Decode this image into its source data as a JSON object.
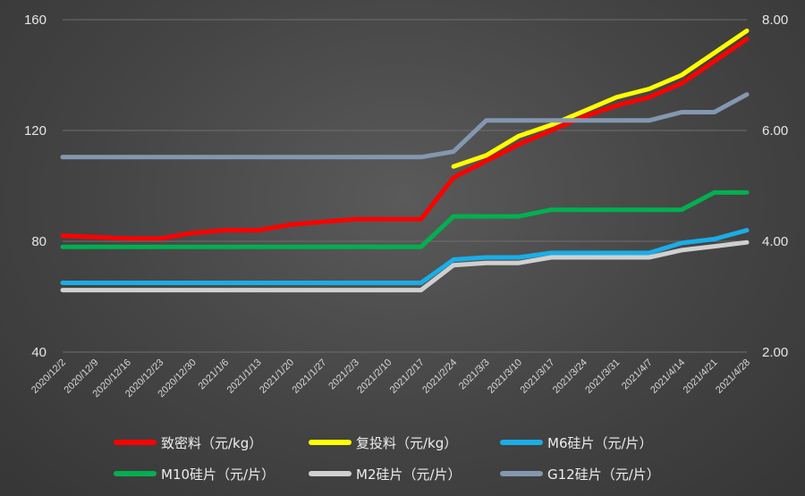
{
  "chart_data": {
    "type": "line",
    "x": [
      "2020/12/2",
      "2020/12/9",
      "2020/12/16",
      "2020/12/23",
      "2020/12/30",
      "2021/1/6",
      "2021/1/13",
      "2021/1/20",
      "2021/1/27",
      "2021/2/3",
      "2021/2/10",
      "2021/2/17",
      "2021/2/24",
      "2021/3/3",
      "2021/3/10",
      "2021/3/17",
      "2021/3/24",
      "2021/3/31",
      "2021/4/7",
      "2021/4/14",
      "2021/4/21",
      "2021/4/28"
    ],
    "y_left_ticks": [
      "40",
      "80",
      "120",
      "160"
    ],
    "y_left_range": [
      40,
      160
    ],
    "y_right_ticks": [
      "2.00",
      "4.00",
      "6.00",
      "8.00"
    ],
    "y_right_range": [
      2,
      8
    ],
    "grid": "horizontal",
    "legend_position": "bottom",
    "series": [
      {
        "name": "致密料（元/kg）",
        "axis": "left",
        "color": "#ff0000",
        "values": [
          82,
          81.5,
          81,
          81,
          83,
          84,
          84,
          86,
          87,
          88,
          88,
          88,
          103,
          109,
          115,
          120,
          125,
          129,
          132,
          137,
          145,
          153
        ]
      },
      {
        "name": "复投料（元/kg）",
        "axis": "left",
        "color": "#ffff00",
        "values": [
          null,
          null,
          null,
          null,
          null,
          null,
          null,
          null,
          null,
          null,
          null,
          null,
          107,
          111,
          118,
          122,
          127,
          132,
          135,
          140,
          148,
          156
        ]
      },
      {
        "name": "M6硅片（元/片）",
        "axis": "right",
        "color": "#19aee8",
        "values": [
          3.25,
          3.25,
          3.25,
          3.25,
          3.25,
          3.25,
          3.25,
          3.25,
          3.25,
          3.25,
          3.25,
          3.25,
          3.67,
          3.71,
          3.71,
          3.79,
          3.79,
          3.79,
          3.79,
          3.97,
          4.04,
          4.2
        ]
      },
      {
        "name": "M10硅片（元/片）",
        "axis": "right",
        "color": "#00b050",
        "values": [
          3.9,
          3.9,
          3.9,
          3.9,
          3.9,
          3.9,
          3.9,
          3.9,
          3.9,
          3.9,
          3.9,
          3.9,
          4.45,
          4.45,
          4.45,
          4.57,
          4.57,
          4.57,
          4.57,
          4.57,
          4.88,
          4.88
        ]
      },
      {
        "name": "M2硅片（元/片）",
        "axis": "right",
        "color": "#d0d0d0",
        "values": [
          3.12,
          3.12,
          3.12,
          3.12,
          3.12,
          3.12,
          3.12,
          3.12,
          3.12,
          3.12,
          3.12,
          3.12,
          3.57,
          3.61,
          3.61,
          3.71,
          3.71,
          3.71,
          3.71,
          3.84,
          3.91,
          3.98
        ]
      },
      {
        "name": "G12硅片（元/片）",
        "axis": "right",
        "color": "#8497b0",
        "values": [
          5.52,
          5.52,
          5.52,
          5.52,
          5.52,
          5.52,
          5.52,
          5.52,
          5.52,
          5.52,
          5.52,
          5.52,
          5.62,
          6.18,
          6.18,
          6.18,
          6.18,
          6.18,
          6.18,
          6.33,
          6.33,
          6.65
        ]
      }
    ]
  }
}
